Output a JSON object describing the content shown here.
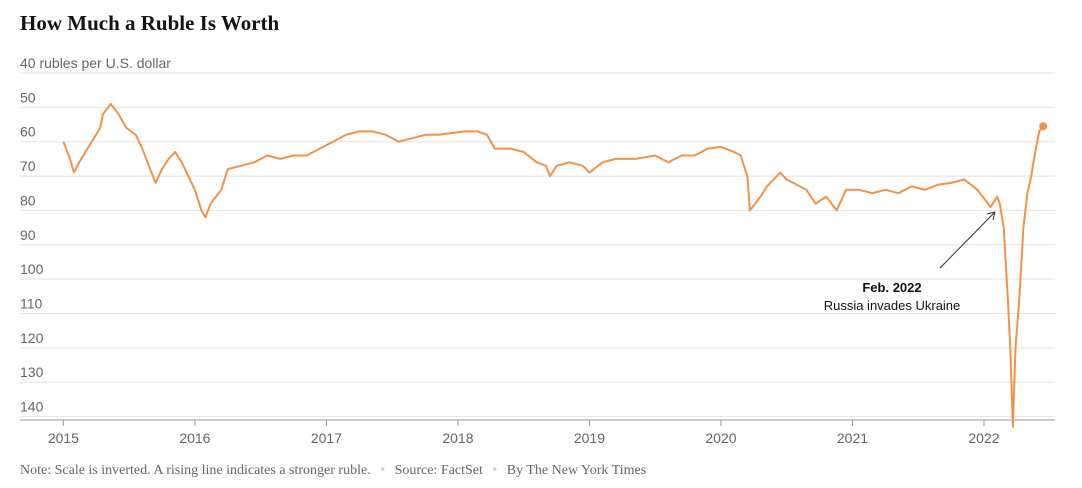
{
  "chart_data": {
    "type": "line",
    "title": "How Much a Ruble Is Worth",
    "annotation": {
      "title": "Feb. 2022",
      "text": "Russia invades Ukraine"
    },
    "note": "Note: Scale is inverted. A rising line indicates a stronger ruble.",
    "source": "Source: FactSet",
    "credit": "By The New York Times",
    "color": "#f0924a",
    "y_inverted": true,
    "grid": true,
    "xlim": [
      2014.67,
      2022.54
    ],
    "xticks": [
      2015,
      2016,
      2017,
      2018,
      2019,
      2020,
      2021,
      2022
    ],
    "ylim": [
      40,
      141
    ],
    "yticks": [
      {
        "value": 40,
        "label": "40 rubles per U.S. dollar"
      },
      50,
      60,
      70,
      80,
      90,
      100,
      110,
      120,
      130,
      140
    ],
    "x": [
      2015.0,
      2015.05,
      2015.08,
      2015.12,
      2015.2,
      2015.28,
      2015.3,
      2015.36,
      2015.42,
      2015.48,
      2015.55,
      2015.6,
      2015.65,
      2015.7,
      2015.75,
      2015.8,
      2015.85,
      2015.9,
      2015.95,
      2016.0,
      2016.05,
      2016.08,
      2016.12,
      2016.2,
      2016.25,
      2016.35,
      2016.45,
      2016.55,
      2016.65,
      2016.75,
      2016.85,
      2016.95,
      2017.05,
      2017.15,
      2017.25,
      2017.35,
      2017.45,
      2017.55,
      2017.65,
      2017.75,
      2017.85,
      2017.95,
      2018.05,
      2018.15,
      2018.22,
      2018.28,
      2018.4,
      2018.5,
      2018.6,
      2018.67,
      2018.7,
      2018.75,
      2018.85,
      2018.95,
      2019.0,
      2019.1,
      2019.2,
      2019.35,
      2019.5,
      2019.6,
      2019.7,
      2019.8,
      2019.9,
      2020.0,
      2020.1,
      2020.15,
      2020.2,
      2020.22,
      2020.26,
      2020.3,
      2020.35,
      2020.45,
      2020.5,
      2020.55,
      2020.65,
      2020.72,
      2020.8,
      2020.88,
      2020.95,
      2021.05,
      2021.15,
      2021.25,
      2021.35,
      2021.45,
      2021.55,
      2021.65,
      2021.75,
      2021.85,
      2021.95,
      2022.05,
      2022.1,
      2022.12,
      2022.15,
      2022.18,
      2022.2,
      2022.22,
      2022.24,
      2022.27,
      2022.3,
      2022.33,
      2022.36,
      2022.38,
      2022.42,
      2022.45
    ],
    "values": [
      60,
      65,
      69,
      66,
      61,
      56,
      52,
      49,
      52,
      56,
      58,
      62,
      67,
      72,
      68,
      65,
      63,
      66,
      70,
      74,
      80,
      82,
      78,
      74,
      68,
      67,
      66,
      64,
      65,
      64,
      64,
      62,
      60,
      58,
      57,
      57,
      58,
      60,
      59,
      58,
      58,
      57.5,
      57,
      57,
      58,
      62,
      62,
      63,
      66,
      67,
      70,
      67,
      66,
      67,
      69,
      66,
      65,
      65,
      64,
      66,
      64,
      64,
      62,
      61.5,
      63,
      64,
      70,
      80,
      78,
      76,
      73,
      69,
      71,
      72,
      74,
      78,
      76,
      80,
      74,
      74,
      75,
      74,
      75,
      73,
      74,
      72.5,
      72,
      71,
      74,
      79,
      76,
      78,
      85,
      105,
      120,
      143,
      120,
      105,
      85,
      75,
      70,
      65,
      57,
      55.5
    ]
  }
}
